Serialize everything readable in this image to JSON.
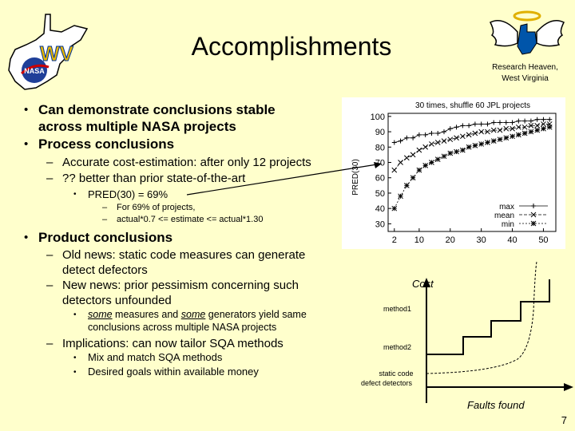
{
  "header": {
    "title": "Accomplishments",
    "affiliation_line1": "Research Heaven,",
    "affiliation_line2": "West Virginia"
  },
  "logos": {
    "left_logo_text": "NASA",
    "left_logo_mark": "WV"
  },
  "bullets": {
    "b1_line1": "Can demonstrate conclusions stable",
    "b1_line2": "across multiple NASA projects",
    "b2": "Process conclusions",
    "b2_sub1": "Accurate cost-estimation: after only 12 projects",
    "b2_sub2": "?? better than prior state-of-the-art",
    "b2_sub3": "PRED(30) = 69%",
    "b2_sub4": "For 69% of projects,",
    "b2_sub5": "actual*0.7 <= estimate <= actual*1.30",
    "b3": "Product conclusions",
    "b3_sub1_line1": "Old news: static code measures can generate",
    "b3_sub1_line2": "detect defectors",
    "b3_sub2_line1": "New news: prior pessimism concerning such",
    "b3_sub2_line2": "detectors unfounded",
    "b3_sub3_some1": "some",
    "b3_sub3_mid": " measures and ",
    "b3_sub3_some2": "some",
    "b3_sub3_rest": " generators yield same",
    "b3_sub3_line2": "conclusions across multiple NASA projects",
    "b3_sub4": "Implications: can now tailor SQA methods",
    "b3_sub5": "Mix and match SQA methods",
    "b3_sub6": "Desired goals within available money"
  },
  "chart_data": {
    "type": "line",
    "title": "30 times, shuffle 60 JPL projects",
    "ylabel": "PRED(30)",
    "xlabel": "",
    "xticks": [
      2,
      10,
      20,
      30,
      40,
      50
    ],
    "yticks": [
      30,
      40,
      50,
      60,
      70,
      80,
      90,
      100
    ],
    "xlim": [
      0,
      54
    ],
    "ylim": [
      25,
      102
    ],
    "grid": false,
    "legend_position": "bottom-right",
    "series": [
      {
        "name": "max",
        "marker": "+",
        "x": [
          2,
          4,
          6,
          8,
          10,
          12,
          14,
          16,
          18,
          20,
          22,
          24,
          26,
          28,
          30,
          32,
          34,
          36,
          38,
          40,
          42,
          44,
          46,
          48,
          50,
          52
        ],
        "values": [
          83,
          84,
          86,
          86,
          88,
          88,
          89,
          89,
          90,
          92,
          93,
          94,
          94,
          95,
          95,
          95,
          96,
          96,
          96,
          96,
          97,
          97,
          97,
          98,
          98,
          98
        ]
      },
      {
        "name": "mean",
        "marker": "x",
        "x": [
          2,
          4,
          6,
          8,
          10,
          12,
          14,
          16,
          18,
          20,
          22,
          24,
          26,
          28,
          30,
          32,
          34,
          36,
          38,
          40,
          42,
          44,
          46,
          48,
          50,
          52
        ],
        "values": [
          65,
          70,
          73,
          75,
          78,
          80,
          82,
          83,
          84,
          85,
          86,
          87,
          88,
          89,
          90,
          90,
          91,
          91,
          92,
          92,
          93,
          93,
          94,
          94,
          95,
          95
        ]
      },
      {
        "name": "min",
        "marker": "*",
        "x": [
          2,
          4,
          6,
          8,
          10,
          12,
          14,
          16,
          18,
          20,
          22,
          24,
          26,
          28,
          30,
          32,
          34,
          36,
          38,
          40,
          42,
          44,
          46,
          48,
          50,
          52
        ],
        "values": [
          40,
          48,
          55,
          60,
          65,
          68,
          70,
          72,
          74,
          76,
          77,
          78,
          80,
          81,
          82,
          83,
          84,
          85,
          86,
          87,
          88,
          89,
          90,
          91,
          92,
          93
        ]
      }
    ]
  },
  "diagram": {
    "y_label": "Cost",
    "x_label": "Faults found",
    "label_method1": "method1",
    "label_method2": "method2",
    "label_static1": "static code",
    "label_static2": "defect detectors"
  },
  "footer": {
    "slide_number": "7"
  },
  "colors": {
    "background": "#ffffcc",
    "state_fill": "#ffffff",
    "wv_gold": "#e8b800",
    "wv_blue": "#003399",
    "nasa_blue": "#1f3f99",
    "halo": "#e0b000"
  }
}
